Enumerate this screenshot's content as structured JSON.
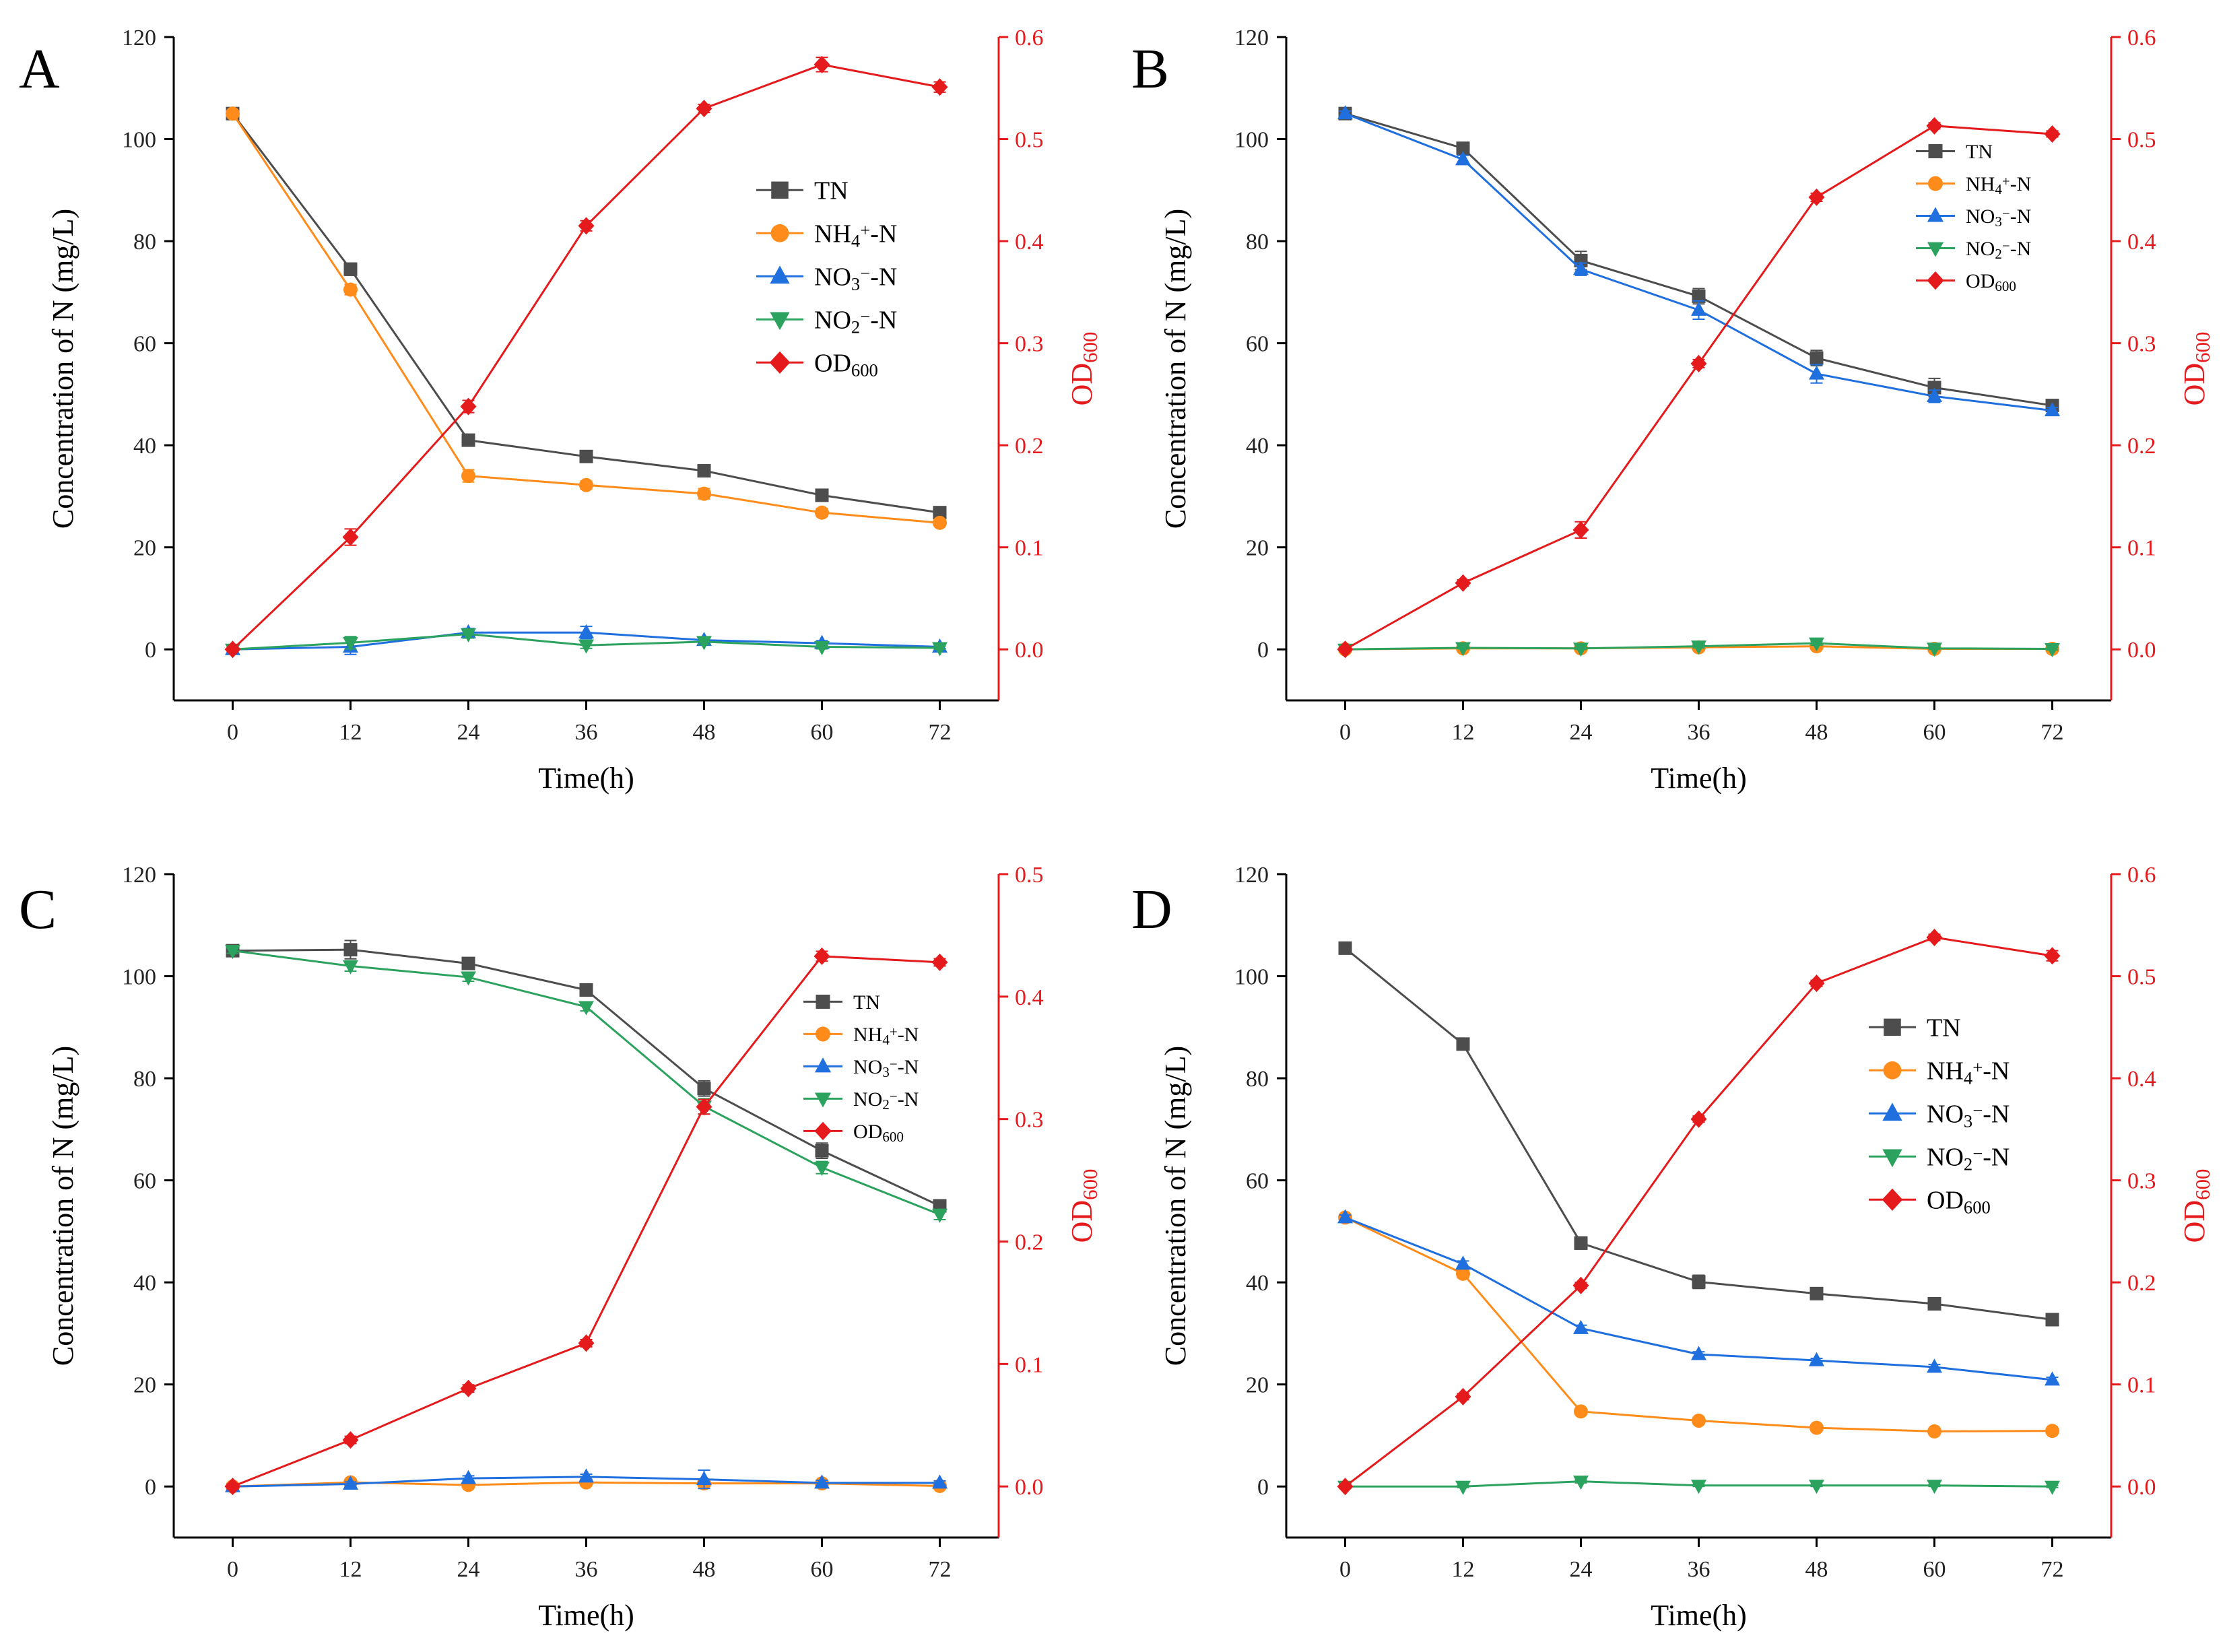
{
  "chart_data": [
    {
      "type": "line",
      "panel_label": "A",
      "xlabel": "Time(h)",
      "ylabel": "Concentration of N (mg/L)",
      "y2label": "OD600",
      "x": [
        0,
        12,
        24,
        36,
        48,
        60,
        72
      ],
      "xlim": [
        -6,
        78
      ],
      "xticks": [
        0,
        12,
        24,
        36,
        48,
        60,
        72
      ],
      "ylim": [
        -10,
        120
      ],
      "yticks": [
        0,
        20,
        40,
        60,
        80,
        100,
        120
      ],
      "y2lim": [
        -0.05,
        0.6
      ],
      "y2ticks": [
        "0.0",
        "0.1",
        "0.2",
        "0.3",
        "0.4",
        "0.5",
        "0.6"
      ],
      "legend_size": "large",
      "legend_position": "middle-right",
      "series": [
        {
          "name": "TN",
          "label_html": "TN",
          "color": "#4d4d4d",
          "marker": "square",
          "axis": "left",
          "values": [
            105,
            74.5,
            41,
            37.8,
            35,
            30.2,
            26.8
          ],
          "errors": [
            0.5,
            1.2,
            1,
            0.8,
            0.8,
            0.8,
            0.6
          ]
        },
        {
          "name": "NH4+-N",
          "label_html": "NH<tspan baseline-shift=\"-25%\" font-size=\"70%\">4</tspan><tspan baseline-shift=\"35%\" font-size=\"70%\">+</tspan>-N",
          "color": "#ff8c1a",
          "marker": "circle",
          "axis": "left",
          "values": [
            105,
            70.5,
            34,
            32.2,
            30.5,
            26.8,
            24.8
          ],
          "errors": [
            0.5,
            1,
            1.2,
            0.8,
            1,
            0.8,
            0.6
          ]
        },
        {
          "name": "NO3−-N",
          "label_html": "NO<tspan baseline-shift=\"-25%\" font-size=\"70%\">3</tspan><tspan baseline-shift=\"35%\" font-size=\"70%\">−</tspan>-N",
          "color": "#1f6fde",
          "marker": "triangle-up",
          "axis": "left",
          "values": [
            0,
            0.5,
            3.3,
            3.3,
            1.8,
            1.2,
            0.5
          ],
          "errors": [
            0.3,
            1.5,
            0.8,
            1.2,
            0.6,
            0.5,
            0.3
          ]
        },
        {
          "name": "NO2−-N",
          "label_html": "NO<tspan baseline-shift=\"-25%\" font-size=\"70%\">2</tspan><tspan baseline-shift=\"35%\" font-size=\"70%\">−</tspan>-N",
          "color": "#2ca25f",
          "marker": "triangle-down",
          "axis": "left",
          "values": [
            0,
            1.3,
            3,
            0.8,
            1.5,
            0.5,
            0.3
          ],
          "errors": [
            0.3,
            1.2,
            0.8,
            0.6,
            0.6,
            0.4,
            0.3
          ]
        },
        {
          "name": "OD600",
          "label_html": "OD<tspan baseline-shift=\"-25%\" font-size=\"70%\">600</tspan>",
          "color": "#e41a1c",
          "marker": "diamond",
          "axis": "right",
          "values": [
            0,
            0.11,
            0.238,
            0.415,
            0.53,
            0.573,
            0.551
          ],
          "errors": [
            0.002,
            0.008,
            0.006,
            0.005,
            0.004,
            0.007,
            0.005
          ]
        }
      ]
    },
    {
      "type": "line",
      "panel_label": "B",
      "xlabel": "Time(h)",
      "ylabel": "Concentration of N (mg/L)",
      "y2label": "OD600",
      "x": [
        0,
        12,
        24,
        36,
        48,
        60,
        72
      ],
      "xlim": [
        -6,
        78
      ],
      "xticks": [
        0,
        12,
        24,
        36,
        48,
        60,
        72
      ],
      "ylim": [
        -10,
        120
      ],
      "yticks": [
        0,
        20,
        40,
        60,
        80,
        100,
        120
      ],
      "y2lim": [
        -0.05,
        0.6
      ],
      "y2ticks": [
        "0.0",
        "0.1",
        "0.2",
        "0.3",
        "0.4",
        "0.5",
        "0.6"
      ],
      "legend_size": "small",
      "legend_position": "top-right",
      "series": [
        {
          "name": "TN",
          "label_html": "TN",
          "color": "#4d4d4d",
          "marker": "square",
          "axis": "left",
          "values": [
            105,
            98.2,
            76.2,
            69.2,
            57.1,
            51.3,
            47.8
          ],
          "errors": [
            0.5,
            0.8,
            1.8,
            1.5,
            1.5,
            1.8,
            0.6
          ]
        },
        {
          "name": "NH4+-N",
          "label_html": "NH<tspan baseline-shift=\"-25%\" font-size=\"70%\">4</tspan><tspan baseline-shift=\"35%\" font-size=\"70%\">+</tspan>-N",
          "color": "#ff8c1a",
          "marker": "circle",
          "axis": "left",
          "values": [
            0,
            0.2,
            0.2,
            0.4,
            0.6,
            0.1,
            0.1
          ],
          "errors": [
            0.2,
            0.2,
            0.2,
            0.2,
            0.3,
            0.2,
            0.2
          ]
        },
        {
          "name": "NO3−-N",
          "label_html": "NO<tspan baseline-shift=\"-25%\" font-size=\"70%\">3</tspan><tspan baseline-shift=\"35%\" font-size=\"70%\">−</tspan>-N",
          "color": "#1f6fde",
          "marker": "triangle-up",
          "axis": "left",
          "values": [
            105,
            96,
            74.5,
            66.5,
            54,
            49.6,
            46.8
          ],
          "errors": [
            0.5,
            0.8,
            1.2,
            1.8,
            1.8,
            1.2,
            0.6
          ]
        },
        {
          "name": "NO2−-N",
          "label_html": "NO<tspan baseline-shift=\"-25%\" font-size=\"70%\">2</tspan><tspan baseline-shift=\"35%\" font-size=\"70%\">−</tspan>-N",
          "color": "#2ca25f",
          "marker": "triangle-down",
          "axis": "left",
          "values": [
            0,
            0.3,
            0.2,
            0.6,
            1.2,
            0.2,
            0.1
          ],
          "errors": [
            0.2,
            0.2,
            0.2,
            0.3,
            0.4,
            0.2,
            0.2
          ]
        },
        {
          "name": "OD600",
          "label_html": "OD<tspan baseline-shift=\"-25%\" font-size=\"70%\">600</tspan>",
          "color": "#e41a1c",
          "marker": "diamond",
          "axis": "right",
          "values": [
            0,
            0.065,
            0.117,
            0.28,
            0.443,
            0.513,
            0.505
          ],
          "errors": [
            0.002,
            0.003,
            0.008,
            0.004,
            0.004,
            0.003,
            0.003
          ]
        }
      ]
    },
    {
      "type": "line",
      "panel_label": "C",
      "xlabel": "Time(h)",
      "ylabel": "Concentration of N (mg/L)",
      "y2label": "OD600",
      "x": [
        0,
        12,
        24,
        36,
        48,
        60,
        72
      ],
      "xlim": [
        -6,
        78
      ],
      "xticks": [
        0,
        12,
        24,
        36,
        48,
        60,
        72
      ],
      "ylim": [
        -10,
        120
      ],
      "yticks": [
        0,
        20,
        40,
        60,
        80,
        100,
        120
      ],
      "y2lim": [
        -0.0417,
        0.5
      ],
      "y2ticks": [
        "0.0",
        "0.1",
        "0.2",
        "0.3",
        "0.4",
        "0.5"
      ],
      "legend_size": "small",
      "legend_position": "middle-right",
      "series": [
        {
          "name": "TN",
          "label_html": "TN",
          "color": "#4d4d4d",
          "marker": "square",
          "axis": "left",
          "values": [
            105,
            105.2,
            102.5,
            97.3,
            78,
            65.8,
            55
          ],
          "errors": [
            0.5,
            1.8,
            0.8,
            1.2,
            1.5,
            1.5,
            0.8
          ]
        },
        {
          "name": "NH4+-N",
          "label_html": "NH<tspan baseline-shift=\"-25%\" font-size=\"70%\">4</tspan><tspan baseline-shift=\"35%\" font-size=\"70%\">+</tspan>-N",
          "color": "#ff8c1a",
          "marker": "circle",
          "axis": "left",
          "values": [
            0,
            0.8,
            0.3,
            0.8,
            0.6,
            0.6,
            0.1
          ],
          "errors": [
            0.2,
            0.3,
            0.3,
            0.4,
            0.5,
            0.3,
            0.2
          ]
        },
        {
          "name": "NO3−-N",
          "label_html": "NO<tspan baseline-shift=\"-25%\" font-size=\"70%\">3</tspan><tspan baseline-shift=\"35%\" font-size=\"70%\">−</tspan>-N",
          "color": "#1f6fde",
          "marker": "triangle-up",
          "axis": "left",
          "values": [
            0,
            0.5,
            1.6,
            1.9,
            1.4,
            0.7,
            0.7
          ],
          "errors": [
            0.2,
            0.4,
            0.5,
            0.5,
            1.8,
            0.5,
            0.4
          ]
        },
        {
          "name": "NO2−-N",
          "label_html": "NO<tspan baseline-shift=\"-25%\" font-size=\"70%\">2</tspan><tspan baseline-shift=\"35%\" font-size=\"70%\">−</tspan>-N",
          "color": "#2ca25f",
          "marker": "triangle-down",
          "axis": "left",
          "values": [
            105,
            102,
            99.8,
            94,
            74.5,
            62.5,
            53.3
          ],
          "errors": [
            0.5,
            1,
            0.8,
            0.8,
            1.5,
            1.2,
            1
          ]
        },
        {
          "name": "OD600",
          "label_html": "OD<tspan baseline-shift=\"-25%\" font-size=\"70%\">600</tspan>",
          "color": "#e41a1c",
          "marker": "diamond",
          "axis": "right",
          "values": [
            0,
            0.038,
            0.08,
            0.117,
            0.31,
            0.433,
            0.428
          ],
          "errors": [
            0.002,
            0.003,
            0.003,
            0.003,
            0.006,
            0.004,
            0.003
          ]
        }
      ]
    },
    {
      "type": "line",
      "panel_label": "D",
      "xlabel": "Time(h)",
      "ylabel": "Concentration of N (mg/L)",
      "y2label": "OD600",
      "x": [
        0,
        12,
        24,
        36,
        48,
        60,
        72
      ],
      "xlim": [
        -6,
        78
      ],
      "xticks": [
        0,
        12,
        24,
        36,
        48,
        60,
        72
      ],
      "ylim": [
        -10,
        120
      ],
      "yticks": [
        0,
        20,
        40,
        60,
        80,
        100,
        120
      ],
      "y2lim": [
        -0.05,
        0.6
      ],
      "y2ticks": [
        "0.0",
        "0.1",
        "0.2",
        "0.3",
        "0.4",
        "0.5",
        "0.6"
      ],
      "legend_size": "large",
      "legend_position": "middle-right",
      "series": [
        {
          "name": "TN",
          "label_html": "TN",
          "color": "#4d4d4d",
          "marker": "square",
          "axis": "left",
          "values": [
            105.5,
            86.7,
            47.7,
            40.1,
            37.8,
            35.8,
            32.7
          ],
          "errors": [
            0.5,
            0.6,
            1.2,
            1.3,
            0.6,
            0.6,
            0.6
          ]
        },
        {
          "name": "NH4+-N",
          "label_html": "NH<tspan baseline-shift=\"-25%\" font-size=\"70%\">4</tspan><tspan baseline-shift=\"35%\" font-size=\"70%\">+</tspan>-N",
          "color": "#ff8c1a",
          "marker": "circle",
          "axis": "left",
          "values": [
            52.7,
            41.7,
            14.7,
            12.9,
            11.5,
            10.8,
            10.9
          ],
          "errors": [
            0.5,
            0.8,
            0.6,
            0.5,
            0.4,
            0.4,
            0.4
          ]
        },
        {
          "name": "NO3−-N",
          "label_html": "NO<tspan baseline-shift=\"-25%\" font-size=\"70%\">3</tspan><tspan baseline-shift=\"35%\" font-size=\"70%\">−</tspan>-N",
          "color": "#1f6fde",
          "marker": "triangle-up",
          "axis": "left",
          "values": [
            52.7,
            43.6,
            31,
            25.9,
            24.7,
            23.4,
            20.9
          ],
          "errors": [
            0.5,
            0.6,
            0.6,
            0.5,
            0.4,
            0.5,
            0.5
          ]
        },
        {
          "name": "NO2−-N",
          "label_html": "NO<tspan baseline-shift=\"-25%\" font-size=\"70%\">2</tspan><tspan baseline-shift=\"35%\" font-size=\"70%\">−</tspan>-N",
          "color": "#2ca25f",
          "marker": "triangle-down",
          "axis": "left",
          "values": [
            0,
            0,
            1,
            0.2,
            0.2,
            0.2,
            0
          ],
          "errors": [
            0.2,
            0.2,
            0.3,
            0.2,
            0.2,
            0.2,
            0.2
          ]
        },
        {
          "name": "OD600",
          "label_html": "OD<tspan baseline-shift=\"-25%\" font-size=\"70%\">600</tspan>",
          "color": "#e41a1c",
          "marker": "diamond",
          "axis": "right",
          "values": [
            0,
            0.088,
            0.197,
            0.36,
            0.493,
            0.538,
            0.52
          ],
          "errors": [
            0.002,
            0.003,
            0.003,
            0.003,
            0.003,
            0.003,
            0.005
          ]
        }
      ]
    }
  ]
}
